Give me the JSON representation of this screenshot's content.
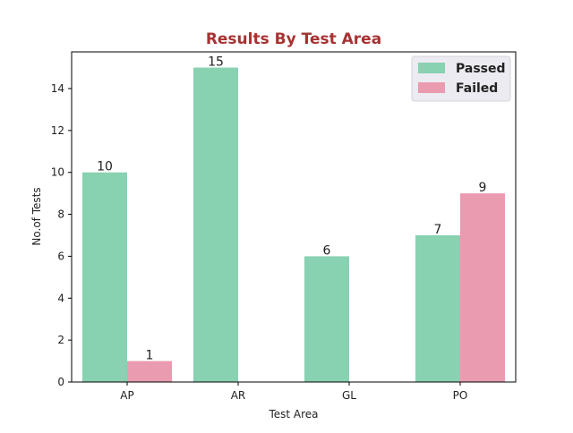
{
  "chart_data": {
    "type": "bar",
    "title": "Results By Test Area",
    "xlabel": "Test Area",
    "ylabel": "No.of Tests",
    "categories": [
      "AP",
      "AR",
      "GL",
      "PO"
    ],
    "series": [
      {
        "name": "Passed",
        "values": [
          10,
          15,
          6,
          7
        ],
        "color": "#88d1b1"
      },
      {
        "name": "Failed",
        "values": [
          1,
          0,
          0,
          9
        ],
        "color": "#ea9bb0"
      }
    ],
    "data_labels": [
      {
        "category": "AP",
        "series": "Passed",
        "text": "10"
      },
      {
        "category": "AP",
        "series": "Failed",
        "text": "1"
      },
      {
        "category": "AR",
        "series": "Passed",
        "text": "15"
      },
      {
        "category": "GL",
        "series": "Passed",
        "text": "6"
      },
      {
        "category": "PO",
        "series": "Passed",
        "text": "7"
      },
      {
        "category": "PO",
        "series": "Failed",
        "text": "9"
      }
    ],
    "ylim": [
      0,
      15.75
    ],
    "yticks": [
      "0",
      "2",
      "4",
      "6",
      "8",
      "10",
      "12",
      "14"
    ],
    "legend_position": "top-right",
    "grid": false,
    "title_color": "#a83232"
  }
}
